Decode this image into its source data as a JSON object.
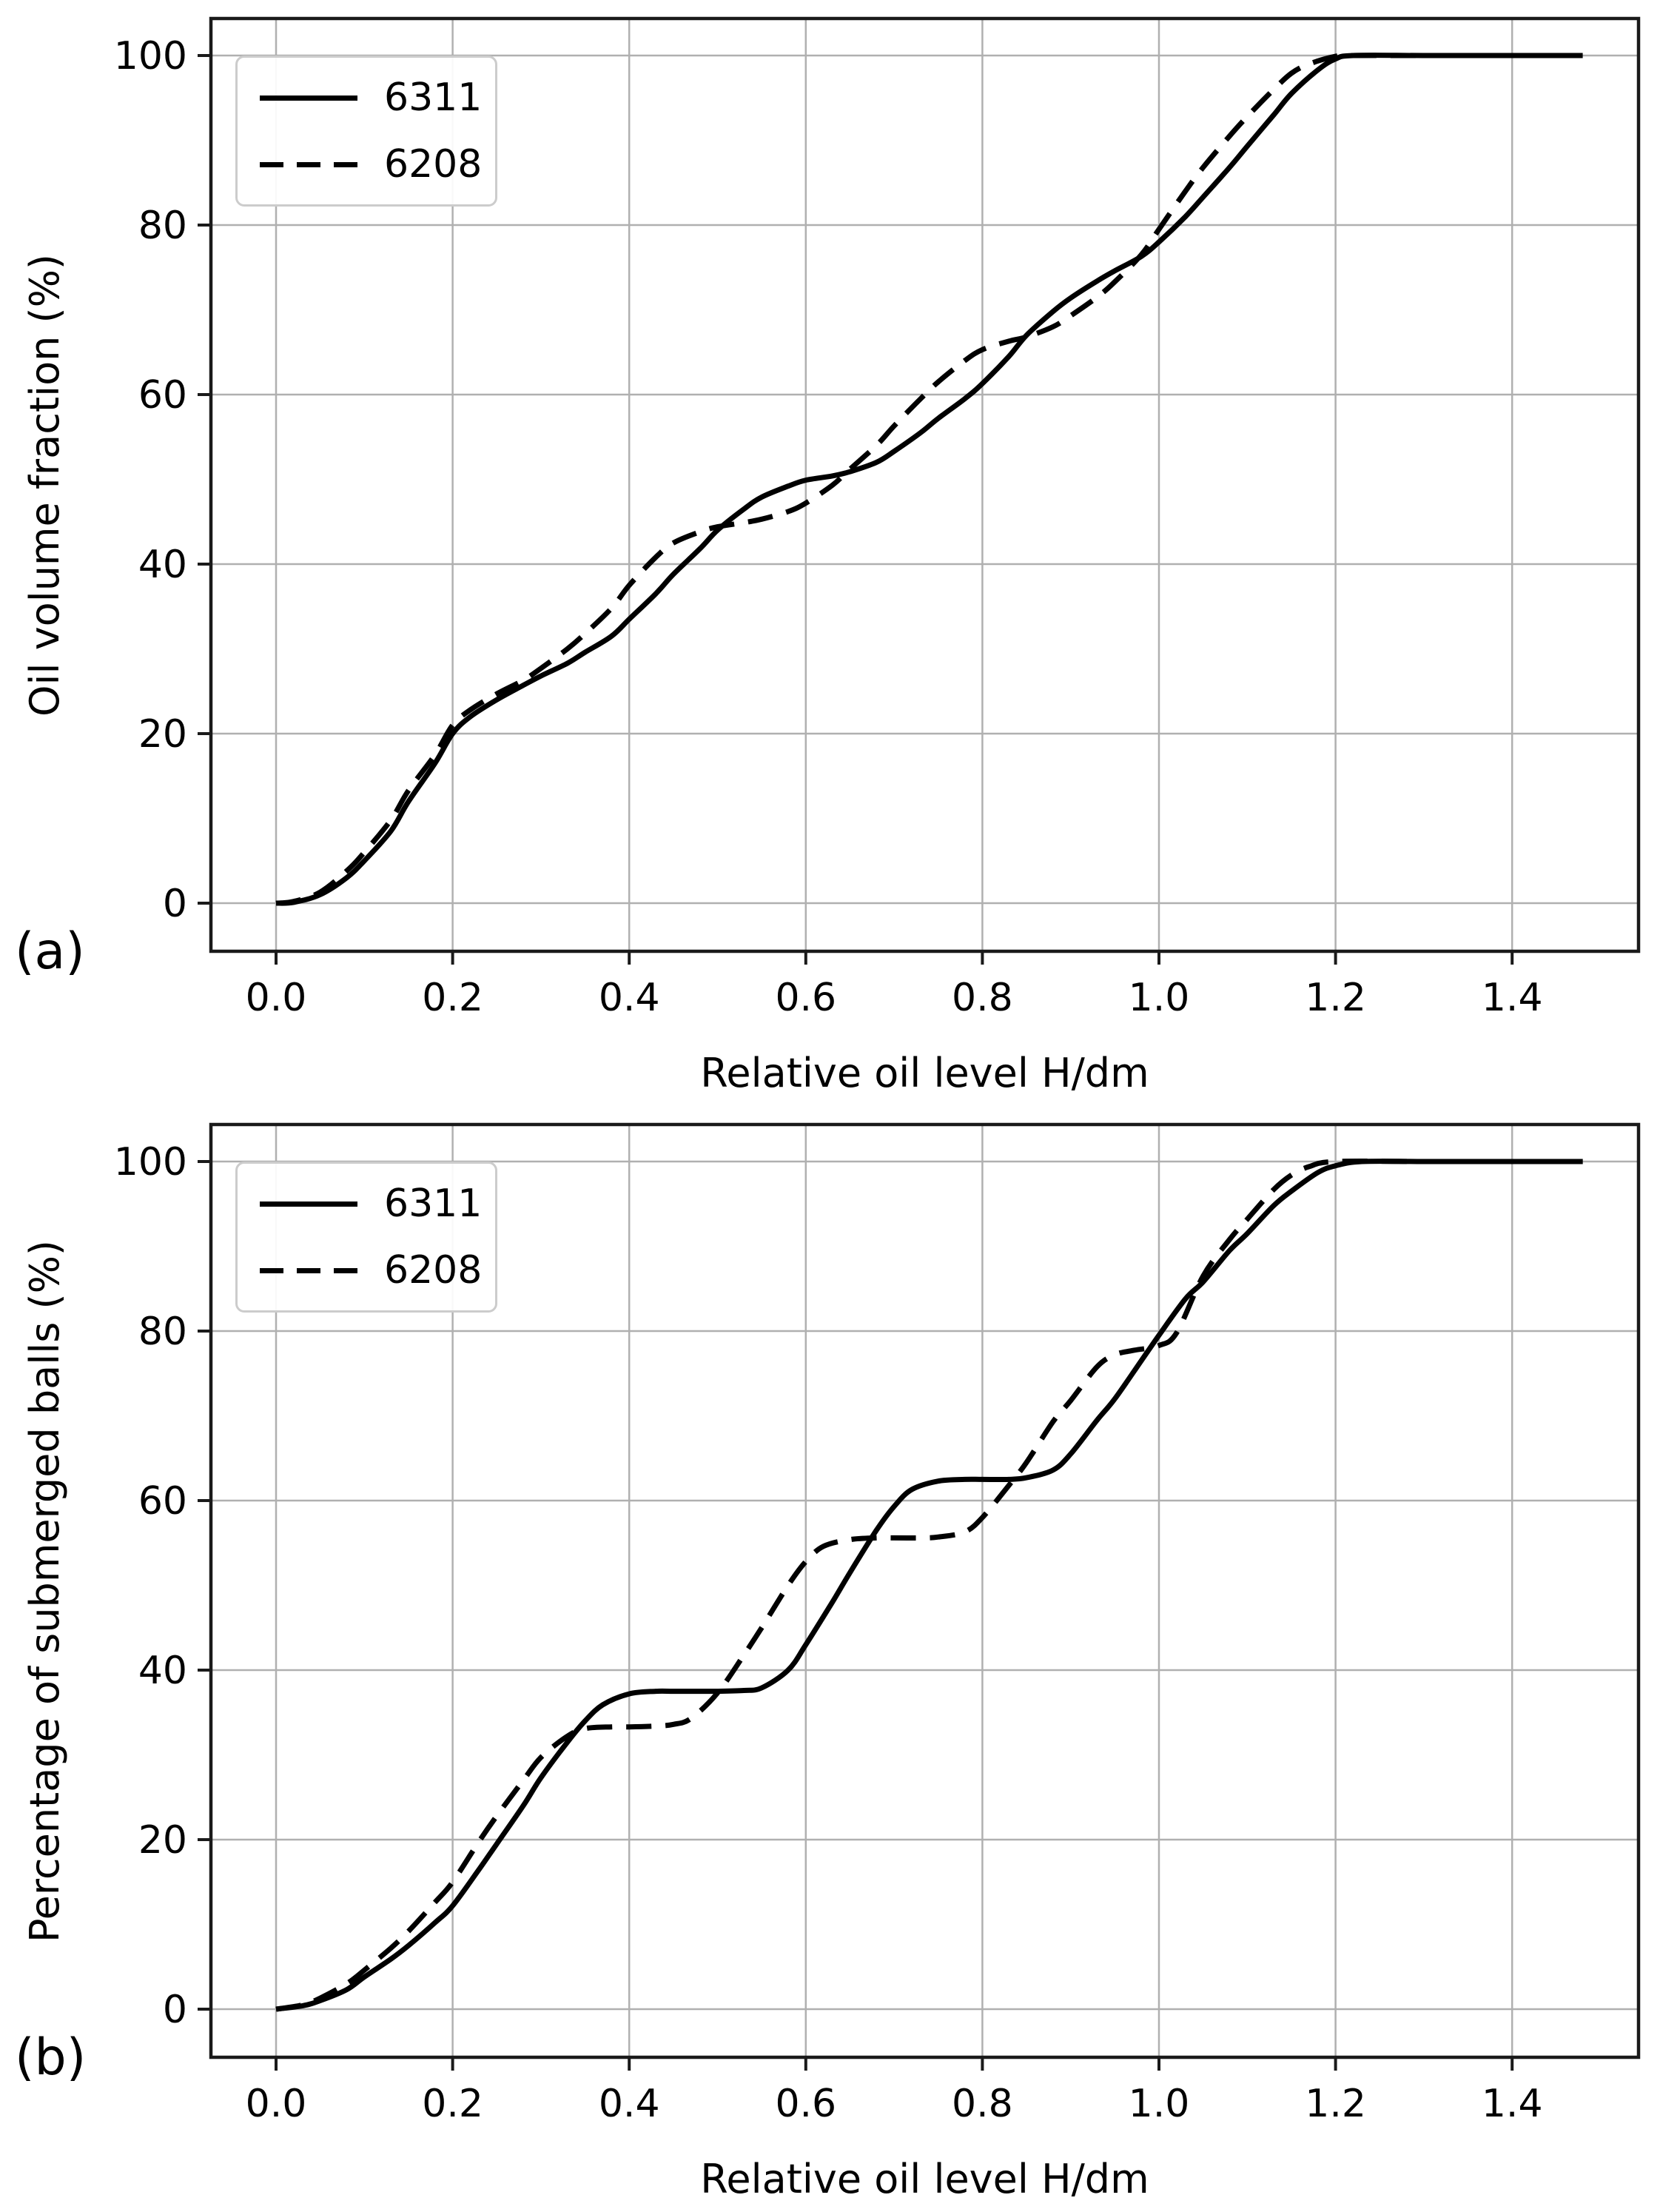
{
  "figure": {
    "background": "#ffffff",
    "text_color": "#000000",
    "grid_color": "#b0b0b0",
    "spine_color": "#1a1a1a",
    "curve_color": "#000000",
    "legend_border_color": "#cccccc"
  },
  "chart_data": [
    {
      "type": "line",
      "subplot_label": "(a)",
      "xlabel": "Relative oil level H/dm",
      "ylabel": "Oil volume fraction (%)",
      "xlim": [
        -0.074,
        1.543
      ],
      "ylim": [
        -5.7,
        104.4
      ],
      "grid": true,
      "legend_position": "upper-left",
      "xtick_labels": [
        "0.0",
        "0.2",
        "0.4",
        "0.6",
        "0.8",
        "1.0",
        "1.2",
        "1.4"
      ],
      "xticks": [
        0.0,
        0.2,
        0.4,
        0.6,
        0.8,
        1.0,
        1.2,
        1.4
      ],
      "ytick_labels": [
        "0",
        "20",
        "40",
        "60",
        "80",
        "100"
      ],
      "yticks": [
        0,
        20,
        40,
        60,
        80,
        100
      ],
      "series": [
        {
          "name": "6311",
          "style": "solid",
          "color": "#000000",
          "points": [
            [
              0,
              0
            ],
            [
              0.02,
              0.1
            ],
            [
              0.05,
              1
            ],
            [
              0.08,
              3
            ],
            [
              0.1,
              5
            ],
            [
              0.13,
              8.5
            ],
            [
              0.15,
              12
            ],
            [
              0.18,
              16.5
            ],
            [
              0.2,
              20
            ],
            [
              0.22,
              22
            ],
            [
              0.25,
              24
            ],
            [
              0.28,
              25.7
            ],
            [
              0.3,
              26.8
            ],
            [
              0.33,
              28.3
            ],
            [
              0.35,
              29.6
            ],
            [
              0.38,
              31.5
            ],
            [
              0.4,
              33.5
            ],
            [
              0.43,
              36.5
            ],
            [
              0.45,
              38.8
            ],
            [
              0.48,
              41.8
            ],
            [
              0.5,
              44
            ],
            [
              0.53,
              46.5
            ],
            [
              0.55,
              47.9
            ],
            [
              0.58,
              49.2
            ],
            [
              0.6,
              49.9
            ],
            [
              0.63,
              50.4
            ],
            [
              0.65,
              50.9
            ],
            [
              0.68,
              52
            ],
            [
              0.7,
              53.3
            ],
            [
              0.73,
              55.5
            ],
            [
              0.75,
              57.2
            ],
            [
              0.78,
              59.5
            ],
            [
              0.8,
              61.3
            ],
            [
              0.83,
              64.5
            ],
            [
              0.85,
              67
            ],
            [
              0.88,
              69.8
            ],
            [
              0.9,
              71.4
            ],
            [
              0.93,
              73.4
            ],
            [
              0.95,
              74.6
            ],
            [
              0.98,
              76.3
            ],
            [
              1,
              78
            ],
            [
              1.03,
              81
            ],
            [
              1.05,
              83.3
            ],
            [
              1.08,
              86.8
            ],
            [
              1.1,
              89.3
            ],
            [
              1.13,
              93
            ],
            [
              1.15,
              95.5
            ],
            [
              1.18,
              98.3
            ],
            [
              1.2,
              99.6
            ],
            [
              1.22,
              100
            ],
            [
              1.3,
              100
            ],
            [
              1.4,
              100
            ],
            [
              1.48,
              100
            ]
          ]
        },
        {
          "name": "6208",
          "style": "dashed",
          "color": "#000000",
          "points": [
            [
              0,
              0
            ],
            [
              0.02,
              0.2
            ],
            [
              0.05,
              1.3
            ],
            [
              0.08,
              3.8
            ],
            [
              0.1,
              6
            ],
            [
              0.13,
              9.8
            ],
            [
              0.15,
              13.3
            ],
            [
              0.18,
              17.5
            ],
            [
              0.2,
              21
            ],
            [
              0.22,
              22.8
            ],
            [
              0.25,
              24.7
            ],
            [
              0.28,
              26.3
            ],
            [
              0.3,
              27.7
            ],
            [
              0.33,
              30
            ],
            [
              0.35,
              31.8
            ],
            [
              0.38,
              34.8
            ],
            [
              0.4,
              37.5
            ],
            [
              0.43,
              40.8
            ],
            [
              0.45,
              42.5
            ],
            [
              0.48,
              43.8
            ],
            [
              0.5,
              44.4
            ],
            [
              0.53,
              44.9
            ],
            [
              0.55,
              45.3
            ],
            [
              0.58,
              46.2
            ],
            [
              0.6,
              47.2
            ],
            [
              0.63,
              49.3
            ],
            [
              0.65,
              51.2
            ],
            [
              0.68,
              54
            ],
            [
              0.7,
              56.3
            ],
            [
              0.73,
              59.5
            ],
            [
              0.75,
              61.5
            ],
            [
              0.78,
              64
            ],
            [
              0.8,
              65.3
            ],
            [
              0.83,
              66.3
            ],
            [
              0.85,
              66.8
            ],
            [
              0.88,
              68
            ],
            [
              0.9,
              69.3
            ],
            [
              0.93,
              71.5
            ],
            [
              0.95,
              73.3
            ],
            [
              0.98,
              76.5
            ],
            [
              1,
              79.5
            ],
            [
              1.03,
              84
            ],
            [
              1.05,
              86.8
            ],
            [
              1.08,
              90.5
            ],
            [
              1.1,
              92.8
            ],
            [
              1.13,
              96
            ],
            [
              1.15,
              97.9
            ],
            [
              1.17,
              99
            ],
            [
              1.2,
              99.9
            ],
            [
              1.22,
              100
            ],
            [
              1.3,
              100
            ],
            [
              1.4,
              100
            ],
            [
              1.48,
              100
            ]
          ]
        }
      ]
    },
    {
      "type": "line",
      "subplot_label": "(b)",
      "xlabel": "Relative oil level H/dm",
      "ylabel": "Percentage of submerged balls (%)",
      "xlim": [
        -0.074,
        1.543
      ],
      "ylim": [
        -5.7,
        104.4
      ],
      "grid": true,
      "legend_position": "upper-left",
      "xtick_labels": [
        "0.0",
        "0.2",
        "0.4",
        "0.6",
        "0.8",
        "1.0",
        "1.2",
        "1.4"
      ],
      "xticks": [
        0.0,
        0.2,
        0.4,
        0.6,
        0.8,
        1.0,
        1.2,
        1.4
      ],
      "ytick_labels": [
        "0",
        "20",
        "40",
        "60",
        "80",
        "100"
      ],
      "yticks": [
        0,
        20,
        40,
        60,
        80,
        100
      ],
      "series": [
        {
          "name": "6311",
          "style": "solid",
          "color": "#000000",
          "points": [
            [
              0,
              0
            ],
            [
              0.03,
              0.4
            ],
            [
              0.05,
              1
            ],
            [
              0.08,
              2.3
            ],
            [
              0.1,
              3.8
            ],
            [
              0.13,
              5.9
            ],
            [
              0.15,
              7.5
            ],
            [
              0.18,
              10.2
            ],
            [
              0.2,
              12.2
            ],
            [
              0.23,
              16.5
            ],
            [
              0.25,
              19.5
            ],
            [
              0.28,
              24
            ],
            [
              0.3,
              27.3
            ],
            [
              0.33,
              31.5
            ],
            [
              0.35,
              34
            ],
            [
              0.37,
              35.9
            ],
            [
              0.4,
              37.2
            ],
            [
              0.43,
              37.5
            ],
            [
              0.45,
              37.5
            ],
            [
              0.48,
              37.5
            ],
            [
              0.5,
              37.5
            ],
            [
              0.53,
              37.6
            ],
            [
              0.55,
              37.9
            ],
            [
              0.58,
              40
            ],
            [
              0.6,
              43
            ],
            [
              0.63,
              48
            ],
            [
              0.65,
              51.5
            ],
            [
              0.68,
              56.5
            ],
            [
              0.7,
              59.3
            ],
            [
              0.72,
              61.3
            ],
            [
              0.75,
              62.3
            ],
            [
              0.78,
              62.5
            ],
            [
              0.8,
              62.5
            ],
            [
              0.83,
              62.5
            ],
            [
              0.85,
              62.7
            ],
            [
              0.88,
              63.6
            ],
            [
              0.9,
              65.5
            ],
            [
              0.93,
              69.5
            ],
            [
              0.95,
              72
            ],
            [
              0.98,
              76.5
            ],
            [
              1,
              79.5
            ],
            [
              1.03,
              83.8
            ],
            [
              1.05,
              85.8
            ],
            [
              1.08,
              89.5
            ],
            [
              1.1,
              91.5
            ],
            [
              1.13,
              94.8
            ],
            [
              1.15,
              96.5
            ],
            [
              1.18,
              98.7
            ],
            [
              1.2,
              99.5
            ],
            [
              1.23,
              100
            ],
            [
              1.3,
              100
            ],
            [
              1.4,
              100
            ],
            [
              1.48,
              100
            ]
          ]
        },
        {
          "name": "6208",
          "style": "dashed",
          "color": "#000000",
          "points": [
            [
              0,
              0
            ],
            [
              0.03,
              0.5
            ],
            [
              0.05,
              1.3
            ],
            [
              0.08,
              3
            ],
            [
              0.1,
              4.6
            ],
            [
              0.13,
              7.2
            ],
            [
              0.15,
              9.2
            ],
            [
              0.18,
              12.6
            ],
            [
              0.2,
              15
            ],
            [
              0.23,
              19.8
            ],
            [
              0.25,
              22.8
            ],
            [
              0.28,
              27
            ],
            [
              0.3,
              29.7
            ],
            [
              0.33,
              32.2
            ],
            [
              0.35,
              33.1
            ],
            [
              0.38,
              33.3
            ],
            [
              0.4,
              33.3
            ],
            [
              0.43,
              33.4
            ],
            [
              0.45,
              33.6
            ],
            [
              0.47,
              34.3
            ],
            [
              0.5,
              37.3
            ],
            [
              0.53,
              41.8
            ],
            [
              0.55,
              45
            ],
            [
              0.58,
              50
            ],
            [
              0.6,
              52.8
            ],
            [
              0.62,
              54.6
            ],
            [
              0.65,
              55.4
            ],
            [
              0.68,
              55.6
            ],
            [
              0.7,
              55.6
            ],
            [
              0.73,
              55.6
            ],
            [
              0.75,
              55.7
            ],
            [
              0.78,
              56.3
            ],
            [
              0.8,
              58
            ],
            [
              0.83,
              61.8
            ],
            [
              0.85,
              64.5
            ],
            [
              0.88,
              69.3
            ],
            [
              0.9,
              71.8
            ],
            [
              0.93,
              75.8
            ],
            [
              0.95,
              77.2
            ],
            [
              0.97,
              77.7
            ],
            [
              1,
              78.3
            ],
            [
              1.02,
              79.8
            ],
            [
              1.05,
              86.5
            ],
            [
              1.08,
              90.8
            ],
            [
              1.1,
              93.2
            ],
            [
              1.13,
              96.7
            ],
            [
              1.15,
              98.4
            ],
            [
              1.17,
              99.4
            ],
            [
              1.2,
              100
            ],
            [
              1.3,
              100
            ],
            [
              1.4,
              100
            ],
            [
              1.48,
              100
            ]
          ]
        }
      ]
    }
  ]
}
